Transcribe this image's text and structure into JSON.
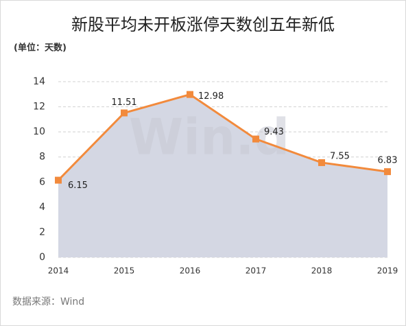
{
  "chart_data": {
    "type": "area-line",
    "title": "新股平均未开板涨停天数创五年新低",
    "unit_label": "(单位：天数)",
    "categories": [
      "2014",
      "2015",
      "2016",
      "2017",
      "2018",
      "2019"
    ],
    "values": [
      6.15,
      11.51,
      12.98,
      9.43,
      7.55,
      6.83
    ],
    "color": "#f28a3c",
    "area_color": "#d4d7e3",
    "ylim": [
      0,
      14
    ],
    "yticks": [
      0,
      2,
      4,
      6,
      8,
      10,
      12,
      14
    ],
    "grid": true,
    "watermark": "Win.d",
    "source": "数据来源：Wind"
  }
}
